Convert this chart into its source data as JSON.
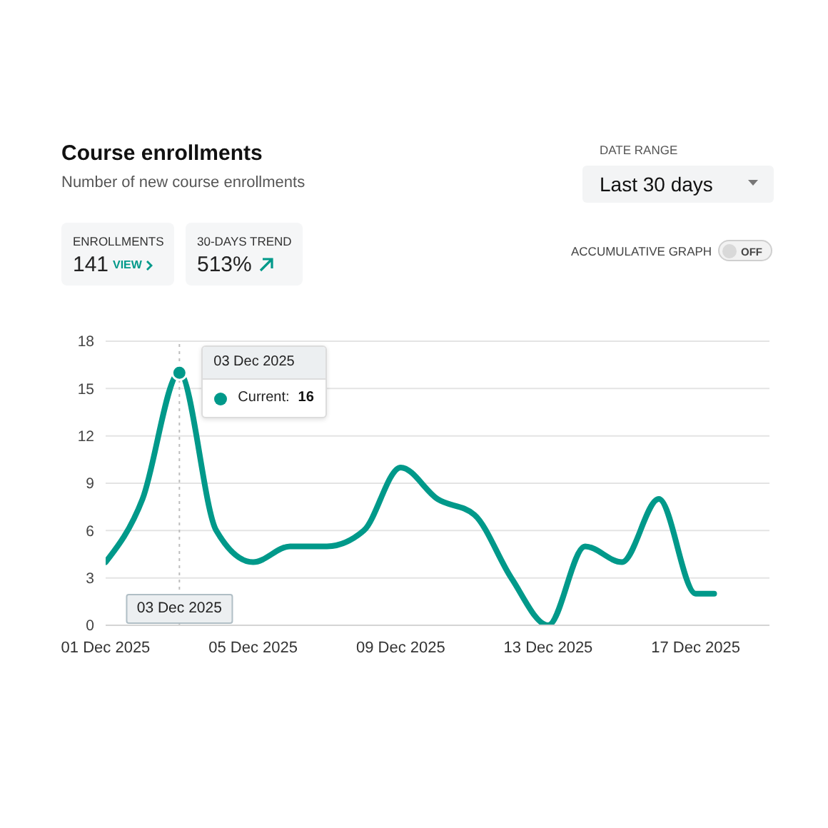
{
  "chart_data": {
    "type": "line",
    "title": "Course enrollments",
    "subtitle": "Number of new course enrollments",
    "x": [
      "2025-12-01",
      "2025-12-02",
      "2025-12-03",
      "2025-12-04",
      "2025-12-05",
      "2025-12-06",
      "2025-12-07",
      "2025-12-08",
      "2025-12-09",
      "2025-12-10",
      "2025-12-11",
      "2025-12-12",
      "2025-12-13",
      "2025-12-14",
      "2025-12-15",
      "2025-12-16",
      "2025-12-17",
      "2025-12-17T12:00"
    ],
    "series": [
      {
        "name": "Current:",
        "color": "#00998a",
        "values": [
          4,
          8,
          16,
          6,
          4,
          5,
          5,
          6,
          10,
          8,
          7,
          3,
          0,
          5,
          4,
          8,
          2,
          2
        ]
      }
    ],
    "xlim": [
      "2025-12-01",
      "2025-12-19"
    ],
    "xticks": [
      {
        "value": "2025-12-01",
        "label": "01 Dec 2025"
      },
      {
        "value": "2025-12-05",
        "label": "05 Dec 2025"
      },
      {
        "value": "2025-12-09",
        "label": "09 Dec 2025"
      },
      {
        "value": "2025-12-13",
        "label": "13 Dec 2025"
      },
      {
        "value": "2025-12-17",
        "label": "17 Dec 2025"
      }
    ],
    "ylim": [
      0,
      18
    ],
    "yticks": [
      0,
      3,
      6,
      9,
      12,
      15,
      18
    ],
    "grid": "y",
    "marker": "none",
    "line_style": "solid",
    "ref_lines": [
      {
        "axis": "x",
        "value": "2025-12-03",
        "label": "03 Dec 2025",
        "line_style": "dotted",
        "color": "#bdbdbd"
      }
    ],
    "annotations": [
      "DATE RANGE",
      "Last 30 days",
      "ENROLLMENTS",
      "141",
      "VIEW",
      "30-DAYS TREND",
      "513%",
      "ACCUMULATIVE GRAPH",
      "OFF",
      "16",
      {
        "text": "03 Dec 2025",
        "x": "2025-12-03",
        "y": 16
      }
    ]
  }
}
